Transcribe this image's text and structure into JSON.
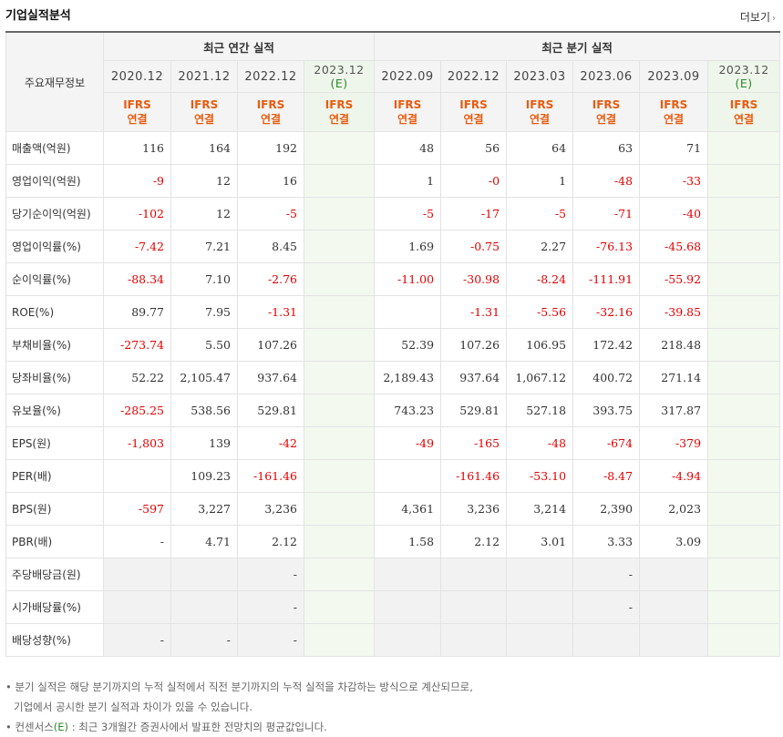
{
  "title": "기업실적분석",
  "more_label": "더보기",
  "header": {
    "corner_label": "주요재무정보",
    "annual_label": "최근 연간 실적",
    "quarter_label": "최근 분기 실적",
    "annual_periods": [
      "2020.12",
      "2021.12",
      "2022.12"
    ],
    "annual_est_period": "2023.12",
    "quarter_periods": [
      "2022.09",
      "2022.12",
      "2023.03",
      "2023.06",
      "2023.09"
    ],
    "quarter_est_period": "2023.12",
    "est_mark": "(E)",
    "ifrs_line1": "IFRS",
    "ifrs_line2": "연결"
  },
  "rows": [
    {
      "label": "매출액(억원)",
      "annual": [
        "116",
        "164",
        "192"
      ],
      "quarter": [
        "48",
        "56",
        "64",
        "63",
        "71"
      ]
    },
    {
      "label": "영업이익(억원)",
      "annual": [
        "-9",
        "12",
        "16"
      ],
      "quarter": [
        "1",
        "-0",
        "1",
        "-48",
        "-33"
      ]
    },
    {
      "label": "당기순이익(억원)",
      "annual": [
        "-102",
        "12",
        "-5"
      ],
      "quarter": [
        "-5",
        "-17",
        "-5",
        "-71",
        "-40"
      ]
    },
    {
      "label": "영업이익률(%)",
      "annual": [
        "-7.42",
        "7.21",
        "8.45"
      ],
      "quarter": [
        "1.69",
        "-0.75",
        "2.27",
        "-76.13",
        "-45.68"
      ]
    },
    {
      "label": "순이익률(%)",
      "annual": [
        "-88.34",
        "7.10",
        "-2.76"
      ],
      "quarter": [
        "-11.00",
        "-30.98",
        "-8.24",
        "-111.91",
        "-55.92"
      ]
    },
    {
      "label": "ROE(%)",
      "annual": [
        "89.77",
        "7.95",
        "-1.31"
      ],
      "quarter": [
        "",
        "-1.31",
        "-5.56",
        "-32.16",
        "-39.85"
      ]
    },
    {
      "label": "부채비율(%)",
      "annual": [
        "-273.74",
        "5.50",
        "107.26"
      ],
      "quarter": [
        "52.39",
        "107.26",
        "106.95",
        "172.42",
        "218.48"
      ]
    },
    {
      "label": "당좌비율(%)",
      "annual": [
        "52.22",
        "2,105.47",
        "937.64"
      ],
      "quarter": [
        "2,189.43",
        "937.64",
        "1,067.12",
        "400.72",
        "271.14"
      ]
    },
    {
      "label": "유보율(%)",
      "annual": [
        "-285.25",
        "538.56",
        "529.81"
      ],
      "quarter": [
        "743.23",
        "529.81",
        "527.18",
        "393.75",
        "317.87"
      ]
    },
    {
      "label": "EPS(원)",
      "annual": [
        "-1,803",
        "139",
        "-42"
      ],
      "quarter": [
        "-49",
        "-165",
        "-48",
        "-674",
        "-379"
      ]
    },
    {
      "label": "PER(배)",
      "annual": [
        "",
        "109.23",
        "-161.46"
      ],
      "quarter": [
        "",
        "-161.46",
        "-53.10",
        "-8.47",
        "-4.94"
      ]
    },
    {
      "label": "BPS(원)",
      "annual": [
        "-597",
        "3,227",
        "3,236"
      ],
      "quarter": [
        "4,361",
        "3,236",
        "3,214",
        "2,390",
        "2,023"
      ]
    },
    {
      "label": "PBR(배)",
      "annual": [
        "-",
        "4.71",
        "2.12"
      ],
      "quarter": [
        "1.58",
        "2.12",
        "3.01",
        "3.33",
        "3.09"
      ]
    },
    {
      "label": "주당배당금(원)",
      "annual": [
        "",
        "",
        "-"
      ],
      "quarter": [
        "",
        "",
        "",
        "-",
        ""
      ]
    },
    {
      "label": "시가배당률(%)",
      "annual": [
        "",
        "",
        "-"
      ],
      "quarter": [
        "",
        "",
        "",
        "-",
        ""
      ]
    },
    {
      "label": "배당성향(%)",
      "annual": [
        "-",
        "-",
        "-"
      ],
      "quarter": [
        "",
        "",
        "",
        "",
        ""
      ]
    }
  ],
  "notes": {
    "line1": "분기 실적은 해당 분기까지의 누적 실적에서 직전 분기까지의 누적 실적을 차감하는 방식으로 계산되므로,",
    "line2": "기업에서 공시한 분기 실적과 차이가 있을 수 있습니다.",
    "line3_prefix": "컨센서스",
    "line3_mark": "(E)",
    "line3_suffix": ": 최근 3개월간 증권사에서 발표한 전망치의 평균값입니다."
  },
  "colors": {
    "negative": "#e30000",
    "ifrs": "#e85b0f",
    "estimate_bg": "#f3f9ef",
    "estimate_mark": "#2a8a2a"
  }
}
